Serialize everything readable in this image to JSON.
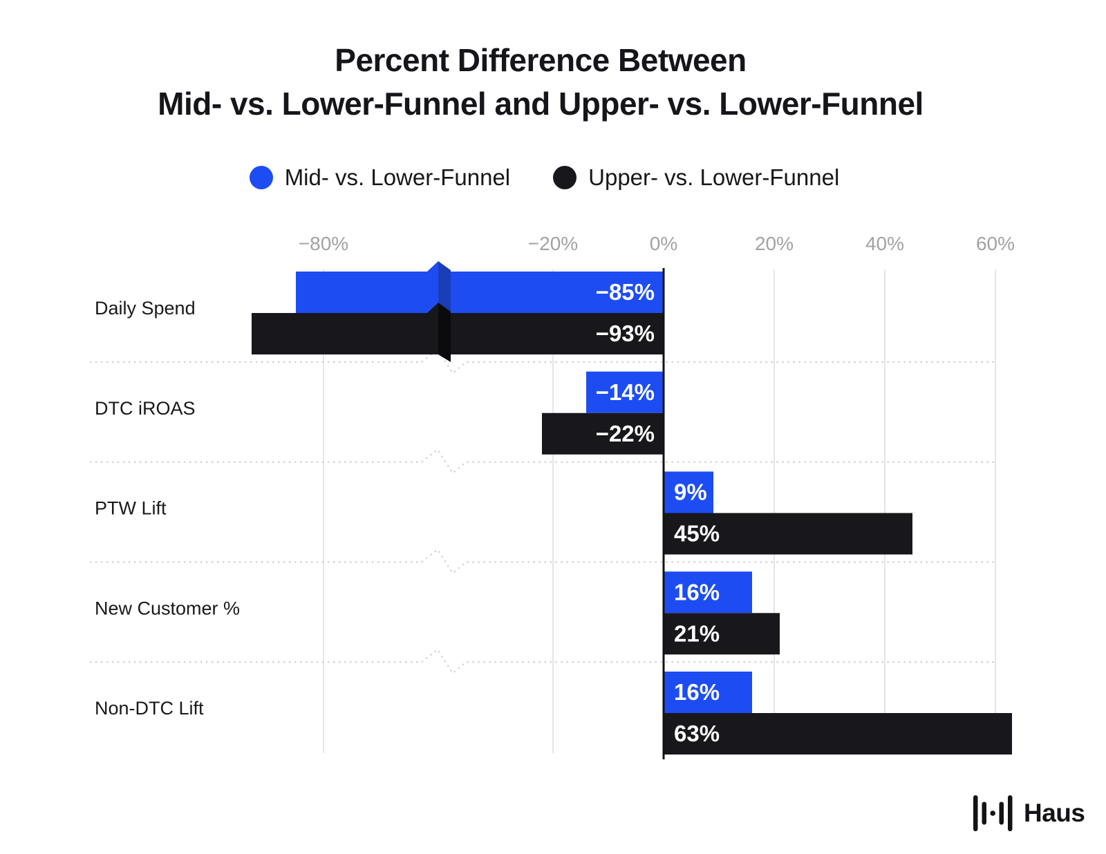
{
  "title": {
    "line1": "Percent Difference Between",
    "line2": "Mid- vs. Lower-Funnel and Upper- vs. Lower-Funnel"
  },
  "legend": {
    "items": [
      {
        "label": "Mid- vs. Lower-Funnel",
        "color": "#1d4df2"
      },
      {
        "label": "Upper- vs. Lower-Funnel",
        "color": "#18181c"
      }
    ]
  },
  "chart_data": {
    "type": "bar",
    "orientation": "horizontal",
    "title": "Percent Difference Between Mid- vs. Lower-Funnel and Upper- vs. Lower-Funnel",
    "categories": [
      "Daily Spend",
      "DTC iROAS",
      "PTW Lift",
      "New Customer %",
      "Non-DTC Lift"
    ],
    "series": [
      {
        "name": "Mid- vs. Lower-Funnel",
        "color": "#1d4df2",
        "fold_color": "#1a3db8",
        "values": [
          -85,
          -14,
          9,
          16,
          16
        ],
        "value_labels": [
          "−85%",
          "−14%",
          "9%",
          "16%",
          "16%"
        ]
      },
      {
        "name": "Upper- vs. Lower-Funnel",
        "color": "#18181c",
        "fold_color": "#0b0b0e",
        "values": [
          -93,
          -22,
          45,
          21,
          63
        ],
        "value_labels": [
          "−93%",
          "−22%",
          "45%",
          "21%",
          "63%"
        ]
      }
    ],
    "x_axis": {
      "tick_values": [
        -80,
        -20,
        0,
        20,
        40,
        60
      ],
      "tick_labels": [
        "−80%",
        "−20%",
        "0%",
        "20%",
        "40%",
        "60%"
      ],
      "broken_axis": true,
      "break_between_values": [
        -42.5,
        -61
      ],
      "grid": true
    },
    "value_suffix": "%",
    "legend_position": "top"
  },
  "colors": {
    "background": "#ffffff",
    "grid_line": "#e5e5e5",
    "separator_dots": "#cfcfcf",
    "zero_axis": "#121216",
    "tick_text": "#a2a2a2",
    "category_text": "#191919",
    "bar_label_text": "#ffffff"
  },
  "logo": {
    "brand": "Haus"
  }
}
